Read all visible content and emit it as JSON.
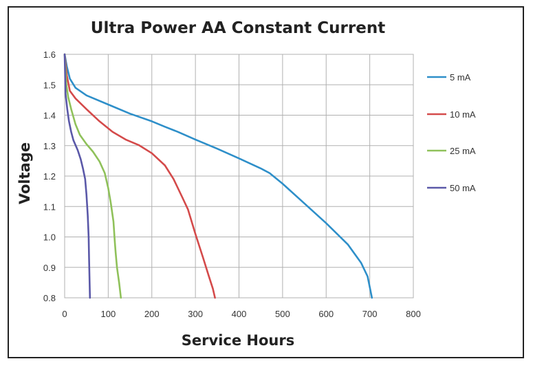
{
  "chart_data": {
    "type": "line",
    "title": "Ultra Power AA Constant Current",
    "xlabel": "Service Hours",
    "ylabel": "Voltage",
    "xlim": [
      0,
      800
    ],
    "ylim": [
      0.8,
      1.6
    ],
    "x_ticks": [
      "0",
      "100",
      "200",
      "300",
      "400",
      "500",
      "600",
      "700",
      "800"
    ],
    "y_ticks": [
      "1.6",
      "1.5",
      "1.4",
      "1.3",
      "1.2",
      "1.1",
      "1.0",
      "0.9",
      "0.8"
    ],
    "grid": true,
    "legend_position": "right",
    "series": [
      {
        "name": "5 mA",
        "color": "#2e8fc9",
        "points": [
          [
            0,
            1.6
          ],
          [
            5,
            1.56
          ],
          [
            12,
            1.52
          ],
          [
            25,
            1.49
          ],
          [
            50,
            1.465
          ],
          [
            100,
            1.435
          ],
          [
            150,
            1.405
          ],
          [
            200,
            1.38
          ],
          [
            230,
            1.362
          ],
          [
            260,
            1.345
          ],
          [
            300,
            1.32
          ],
          [
            350,
            1.29
          ],
          [
            400,
            1.258
          ],
          [
            450,
            1.225
          ],
          [
            470,
            1.21
          ],
          [
            500,
            1.175
          ],
          [
            550,
            1.11
          ],
          [
            600,
            1.045
          ],
          [
            650,
            0.975
          ],
          [
            680,
            0.915
          ],
          [
            695,
            0.87
          ],
          [
            705,
            0.8
          ]
        ]
      },
      {
        "name": "10 mA",
        "color": "#d44a4a",
        "points": [
          [
            0,
            1.6
          ],
          [
            5,
            1.53
          ],
          [
            12,
            1.48
          ],
          [
            25,
            1.455
          ],
          [
            50,
            1.42
          ],
          [
            80,
            1.38
          ],
          [
            110,
            1.345
          ],
          [
            140,
            1.32
          ],
          [
            170,
            1.302
          ],
          [
            200,
            1.275
          ],
          [
            230,
            1.235
          ],
          [
            250,
            1.19
          ],
          [
            270,
            1.13
          ],
          [
            283,
            1.09
          ],
          [
            300,
            1.01
          ],
          [
            318,
            0.93
          ],
          [
            330,
            0.875
          ],
          [
            340,
            0.83
          ],
          [
            345,
            0.8
          ]
        ]
      },
      {
        "name": "25 mA",
        "color": "#8fc15a",
        "points": [
          [
            0,
            1.6
          ],
          [
            4,
            1.5
          ],
          [
            8,
            1.46
          ],
          [
            15,
            1.42
          ],
          [
            25,
            1.37
          ],
          [
            35,
            1.335
          ],
          [
            50,
            1.305
          ],
          [
            65,
            1.28
          ],
          [
            80,
            1.248
          ],
          [
            92,
            1.21
          ],
          [
            100,
            1.16
          ],
          [
            106,
            1.11
          ],
          [
            112,
            1.05
          ],
          [
            115,
            0.985
          ],
          [
            117,
            0.95
          ],
          [
            120,
            0.9
          ],
          [
            125,
            0.85
          ],
          [
            129,
            0.8
          ]
        ]
      },
      {
        "name": "50 mA",
        "color": "#5a58a8",
        "points": [
          [
            0,
            1.6
          ],
          [
            2,
            1.47
          ],
          [
            6,
            1.42
          ],
          [
            10,
            1.38
          ],
          [
            15,
            1.345
          ],
          [
            20,
            1.318
          ],
          [
            30,
            1.285
          ],
          [
            37,
            1.255
          ],
          [
            42,
            1.225
          ],
          [
            47,
            1.19
          ],
          [
            50,
            1.14
          ],
          [
            53,
            1.07
          ],
          [
            55,
            1.0
          ],
          [
            56,
            0.93
          ],
          [
            57,
            0.87
          ],
          [
            58,
            0.8
          ]
        ]
      }
    ]
  }
}
